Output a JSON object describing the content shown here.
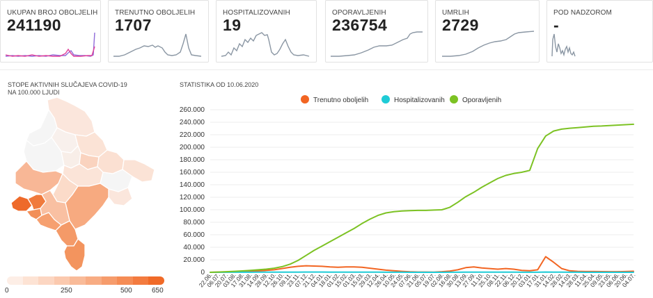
{
  "cards": [
    {
      "label": "UKUPAN BROJ OBOLJELIH",
      "value": "241190"
    },
    {
      "label": "TRENUTNO OBOLJELIH",
      "value": "1707"
    },
    {
      "label": "HOSPITALIZOVANIH",
      "value": "19"
    },
    {
      "label": "OPORAVLJENIH",
      "value": "236754"
    },
    {
      "label": "UMRLIH",
      "value": "2729"
    },
    {
      "label": "POD NADZOROM",
      "value": "-"
    }
  ],
  "map": {
    "title_line1": "STOPE AKTIVNIH SLUČAJEVA COVID-19",
    "title_line2": "NA 100.000 LJUDI",
    "legend_ticks": [
      "0",
      "250",
      "500",
      "650"
    ],
    "legend_colors": [
      "#fdeee6",
      "#fde3d4",
      "#fcd6c2",
      "#fbc9ae",
      "#f9bb99",
      "#f8ac83",
      "#f69c6c",
      "#f58c55",
      "#f37b3f",
      "#f06a28"
    ]
  },
  "chart_title": "STATISTIKA OD 10.06.2020",
  "chart_data": {
    "type": "line",
    "title": "STATISTIKA OD 10.06.2020",
    "xlabel": "",
    "ylabel": "",
    "ylim": [
      0,
      260000
    ],
    "y_ticks": [
      "0",
      "20.000",
      "40.000",
      "60.000",
      "80.000",
      "100.000",
      "120.000",
      "140.000",
      "160.000",
      "180.000",
      "200.000",
      "220.000",
      "240.000",
      "260.000"
    ],
    "x_labels": [
      "22.06.",
      "06.07.",
      "20.07.",
      "03.08.",
      "17.08.",
      "31.08.",
      "14.09.",
      "28.09.",
      "12.10.",
      "26.10.",
      "09.11.",
      "23.11.",
      "07.12.",
      "21.12.",
      "04.01.",
      "18.01.",
      "01.02.",
      "15.02.",
      "01.03.",
      "15.03.",
      "29.03.",
      "12.04.",
      "26.04.",
      "10.05.",
      "24.05.",
      "07.06.",
      "21.06.",
      "05.07.",
      "19.07.",
      "02.08.",
      "16.08.",
      "30.08.",
      "13.09.",
      "27.09.",
      "11.10.",
      "25.10.",
      "08.11.",
      "22.11.",
      "06.12.",
      "20.12.",
      "03.01.",
      "17.01.",
      "31.01.",
      "14.02.",
      "28.02.",
      "14.03.",
      "28.03.",
      "11.04.",
      "25.04.",
      "09.05.",
      "23.05.",
      "06.06.",
      "20.06.",
      "04.07."
    ],
    "legend": [
      {
        "name": "Trenutno oboljelih",
        "color": "#f26522"
      },
      {
        "name": "Hospitalizovanih",
        "color": "#1ecbd6"
      },
      {
        "name": "Oporavljenih",
        "color": "#7cc223"
      }
    ],
    "series": [
      {
        "name": "Trenutno oboljelih",
        "color": "#f26522",
        "values": [
          0,
          200,
          400,
          800,
          1200,
          1500,
          2200,
          3000,
          4000,
          6000,
          8000,
          9500,
          10500,
          10000,
          9500,
          8500,
          8000,
          8500,
          8500,
          8000,
          6500,
          5000,
          3500,
          2500,
          1500,
          800,
          500,
          400,
          300,
          1000,
          2000,
          4000,
          7500,
          8500,
          7000,
          6000,
          5000,
          6000,
          5000,
          3000,
          2500,
          4000,
          25000,
          16000,
          6000,
          2500,
          1500,
          1200,
          1200,
          1100,
          1000,
          1000,
          1200,
          1707
        ]
      },
      {
        "name": "Hospitalizovanih",
        "color": "#1ecbd6",
        "values": [
          0,
          30,
          60,
          90,
          120,
          150,
          180,
          220,
          260,
          300,
          340,
          380,
          420,
          440,
          420,
          380,
          350,
          330,
          320,
          300,
          260,
          200,
          150,
          110,
          80,
          50,
          30,
          25,
          20,
          40,
          90,
          160,
          220,
          250,
          220,
          200,
          180,
          190,
          170,
          140,
          120,
          160,
          400,
          360,
          200,
          100,
          60,
          40,
          30,
          25,
          20,
          20,
          20,
          19
        ]
      },
      {
        "name": "Oporavljenih",
        "color": "#7cc223",
        "values": [
          0,
          500,
          1000,
          1500,
          2200,
          3000,
          4000,
          5000,
          6500,
          9000,
          13000,
          19000,
          27000,
          35000,
          42000,
          49000,
          56000,
          63000,
          70000,
          78000,
          85000,
          91000,
          95000,
          97000,
          98000,
          98500,
          99000,
          99000,
          99500,
          100000,
          104000,
          112000,
          121000,
          128000,
          136000,
          143000,
          150000,
          155000,
          158000,
          160000,
          163000,
          198000,
          218000,
          226000,
          229000,
          230500,
          231500,
          232500,
          233500,
          234000,
          234800,
          235500,
          236100,
          236754
        ]
      }
    ]
  },
  "spark_colors": {
    "line": "#8a96a3",
    "pink": "#e0409a",
    "purple": "#8f6bd9"
  }
}
